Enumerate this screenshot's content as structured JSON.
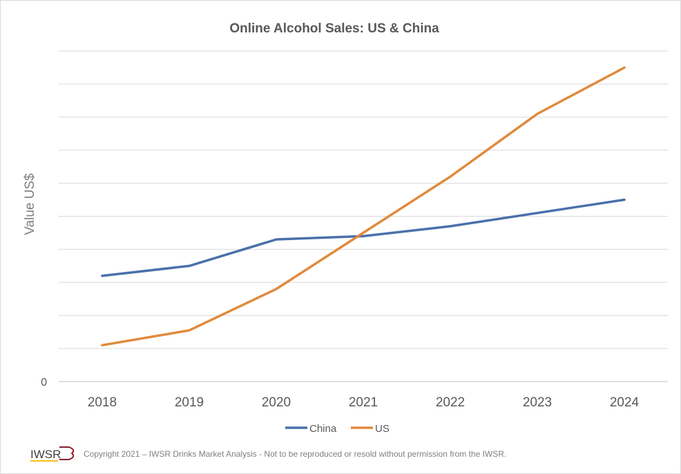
{
  "chart_data": {
    "type": "line",
    "title": "Online Alcohol Sales: US & China",
    "xlabel": "",
    "ylabel": "Value US$",
    "categories": [
      "2018",
      "2019",
      "2020",
      "2021",
      "2022",
      "2023",
      "2024"
    ],
    "series": [
      {
        "name": "China",
        "color": "#4a70aa",
        "values": [
          3.2,
          3.5,
          4.3,
          4.4,
          4.7,
          5.1,
          5.5
        ]
      },
      {
        "name": "US",
        "color": "#e08a3c",
        "values": [
          1.1,
          1.55,
          2.8,
          4.5,
          6.2,
          8.1,
          9.5
        ]
      }
    ],
    "ylim": [
      0,
      10
    ],
    "y_tick_labels": [
      "0"
    ],
    "gridlines": true,
    "legend_position": "bottom"
  },
  "footer": {
    "logo_text": "IWSR",
    "copyright": "Copyright 2021 – IWSR Drinks Market Analysis - Not to be reproduced or resold without permission from the IWSR."
  }
}
